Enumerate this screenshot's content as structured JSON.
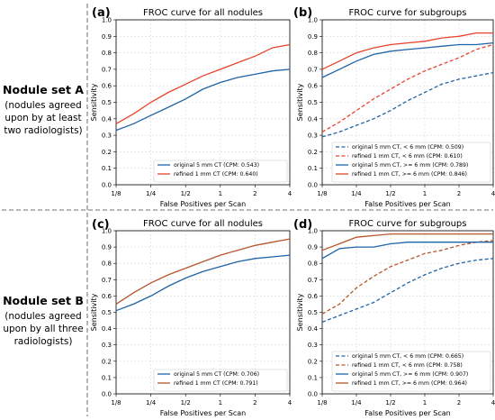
{
  "rows": [
    {
      "title": "Nodule set A",
      "desc": [
        "(nodules agreed",
        "upon by at least",
        "two radiologists)"
      ]
    },
    {
      "title": "Nodule set B",
      "desc": [
        "(nodules agreed",
        "upon by all three",
        "radiologists)"
      ]
    }
  ],
  "colors": {
    "blue": "#1f63a8",
    "red": "#e8432c",
    "brown": "#b5562b"
  },
  "chart_data": [
    {
      "panel_label": "(a)",
      "type": "line",
      "title": "FROC curve for all nodules",
      "xlabel": "False Positives per Scan",
      "ylabel": "Sensitivity",
      "x_scale": "log2",
      "x_ticks": [
        "1/8",
        "1/4",
        "1/2",
        "1",
        "2",
        "4"
      ],
      "x_tick_values": [
        0.125,
        0.25,
        0.5,
        1,
        2,
        4
      ],
      "ylim": [
        0.0,
        1.0
      ],
      "y_ticks": [
        "0.0",
        "0.1",
        "0.2",
        "0.3",
        "0.4",
        "0.5",
        "0.6",
        "0.7",
        "0.8",
        "0.9",
        "1.0"
      ],
      "grid": true,
      "legend_position": "lower-right",
      "series": [
        {
          "name": "original 5 mm CT (CPM: 0.543)",
          "color": "#1f63a8",
          "dash": false,
          "x": [
            0.125,
            0.177,
            0.25,
            0.354,
            0.5,
            0.707,
            1,
            1.41,
            2,
            2.83,
            4
          ],
          "y": [
            0.33,
            0.37,
            0.42,
            0.47,
            0.52,
            0.58,
            0.62,
            0.65,
            0.67,
            0.69,
            0.7
          ]
        },
        {
          "name": "refined 1 mm CT (CPM: 0.640)",
          "color": "#e8432c",
          "dash": false,
          "x": [
            0.125,
            0.177,
            0.25,
            0.354,
            0.5,
            0.707,
            1,
            1.41,
            2,
            2.83,
            4
          ],
          "y": [
            0.37,
            0.43,
            0.5,
            0.56,
            0.61,
            0.66,
            0.7,
            0.74,
            0.78,
            0.83,
            0.85
          ]
        }
      ]
    },
    {
      "panel_label": "(b)",
      "type": "line",
      "title": "FROC curve for subgroups",
      "xlabel": "False Positives per Scan",
      "ylabel": "Sensitivity",
      "x_scale": "log2",
      "x_ticks": [
        "1/8",
        "1/4",
        "1/2",
        "1",
        "2",
        "4"
      ],
      "x_tick_values": [
        0.125,
        0.25,
        0.5,
        1,
        2,
        4
      ],
      "ylim": [
        0.0,
        1.0
      ],
      "y_ticks": [
        "0.0",
        "0.1",
        "0.2",
        "0.3",
        "0.4",
        "0.5",
        "0.6",
        "0.7",
        "0.8",
        "0.9",
        "1.0"
      ],
      "grid": true,
      "legend_position": "lower-right",
      "series": [
        {
          "name": "original 5 mm CT, < 6 mm (CPM: 0.509)",
          "color": "#1f63a8",
          "dash": true,
          "x": [
            0.125,
            0.177,
            0.25,
            0.354,
            0.5,
            0.707,
            1,
            1.41,
            2,
            2.83,
            4
          ],
          "y": [
            0.29,
            0.32,
            0.36,
            0.4,
            0.45,
            0.51,
            0.56,
            0.61,
            0.64,
            0.66,
            0.68
          ]
        },
        {
          "name": "refined 1 mm CT, < 6 mm (CPM: 0.610)",
          "color": "#e8432c",
          "dash": true,
          "x": [
            0.125,
            0.177,
            0.25,
            0.354,
            0.5,
            0.707,
            1,
            1.41,
            2,
            2.83,
            4
          ],
          "y": [
            0.32,
            0.38,
            0.45,
            0.52,
            0.58,
            0.64,
            0.69,
            0.73,
            0.77,
            0.82,
            0.85
          ]
        },
        {
          "name": "original 5 mm CT, >= 6 mm (CPM: 0.789)",
          "color": "#1f63a8",
          "dash": false,
          "x": [
            0.125,
            0.177,
            0.25,
            0.354,
            0.5,
            0.707,
            1,
            1.41,
            2,
            2.83,
            4
          ],
          "y": [
            0.65,
            0.7,
            0.75,
            0.79,
            0.81,
            0.82,
            0.83,
            0.84,
            0.85,
            0.85,
            0.86
          ]
        },
        {
          "name": "refined 1 mm CT, >= 6 mm (CPM: 0.846)",
          "color": "#e8432c",
          "dash": false,
          "x": [
            0.125,
            0.177,
            0.25,
            0.354,
            0.5,
            0.707,
            1,
            1.41,
            2,
            2.83,
            4
          ],
          "y": [
            0.7,
            0.75,
            0.8,
            0.83,
            0.85,
            0.86,
            0.87,
            0.89,
            0.9,
            0.92,
            0.92
          ]
        }
      ]
    },
    {
      "panel_label": "(c)",
      "type": "line",
      "title": "FROC curve for all nodules",
      "xlabel": "False Positives per Scan",
      "ylabel": "Sensitivity",
      "x_scale": "log2",
      "x_ticks": [
        "1/8",
        "1/4",
        "1/2",
        "1",
        "2",
        "4"
      ],
      "x_tick_values": [
        0.125,
        0.25,
        0.5,
        1,
        2,
        4
      ],
      "ylim": [
        0.0,
        1.0
      ],
      "y_ticks": [
        "0.0",
        "0.1",
        "0.2",
        "0.3",
        "0.4",
        "0.5",
        "0.6",
        "0.7",
        "0.8",
        "0.9",
        "1.0"
      ],
      "grid": true,
      "legend_position": "lower-right",
      "series": [
        {
          "name": "original 5 mm CT (CPM: 0.706)",
          "color": "#1f63a8",
          "dash": false,
          "x": [
            0.125,
            0.177,
            0.25,
            0.354,
            0.5,
            0.707,
            1,
            1.41,
            2,
            2.83,
            4
          ],
          "y": [
            0.51,
            0.55,
            0.6,
            0.66,
            0.71,
            0.75,
            0.78,
            0.81,
            0.83,
            0.84,
            0.85
          ]
        },
        {
          "name": "refined 1 mm CT (CPM: 0.791)",
          "color": "#b5562b",
          "dash": false,
          "x": [
            0.125,
            0.177,
            0.25,
            0.354,
            0.5,
            0.707,
            1,
            1.41,
            2,
            2.83,
            4
          ],
          "y": [
            0.55,
            0.62,
            0.68,
            0.73,
            0.77,
            0.81,
            0.85,
            0.88,
            0.91,
            0.93,
            0.95
          ]
        }
      ]
    },
    {
      "panel_label": "(d)",
      "type": "line",
      "title": "FROC curve for subgroups",
      "xlabel": "False Positives per Scan",
      "ylabel": "Sensitivity",
      "x_scale": "log2",
      "x_ticks": [
        "1/8",
        "1/4",
        "1/2",
        "1",
        "2",
        "4"
      ],
      "x_tick_values": [
        0.125,
        0.25,
        0.5,
        1,
        2,
        4
      ],
      "ylim": [
        0.0,
        1.0
      ],
      "y_ticks": [
        "0.0",
        "0.1",
        "0.2",
        "0.3",
        "0.4",
        "0.5",
        "0.6",
        "0.7",
        "0.8",
        "0.9",
        "1.0"
      ],
      "grid": true,
      "legend_position": "lower-right",
      "series": [
        {
          "name": "original 5 mm CT, < 6 mm (CPM: 0.665)",
          "color": "#1f63a8",
          "dash": true,
          "x": [
            0.125,
            0.177,
            0.25,
            0.354,
            0.5,
            0.707,
            1,
            1.41,
            2,
            2.83,
            4
          ],
          "y": [
            0.44,
            0.48,
            0.52,
            0.56,
            0.62,
            0.68,
            0.73,
            0.77,
            0.8,
            0.82,
            0.83
          ]
        },
        {
          "name": "refined 1 mm CT, < 6 mm (CPM: 0.758)",
          "color": "#b5562b",
          "dash": true,
          "x": [
            0.125,
            0.177,
            0.25,
            0.354,
            0.5,
            0.707,
            1,
            1.41,
            2,
            2.83,
            4
          ],
          "y": [
            0.49,
            0.55,
            0.65,
            0.72,
            0.78,
            0.82,
            0.86,
            0.88,
            0.91,
            0.93,
            0.94
          ]
        },
        {
          "name": "original 5 mm CT, >= 6 mm (CPM: 0.907)",
          "color": "#1f63a8",
          "dash": false,
          "x": [
            0.125,
            0.177,
            0.25,
            0.354,
            0.5,
            0.707,
            1,
            1.41,
            2,
            2.83,
            4
          ],
          "y": [
            0.83,
            0.89,
            0.9,
            0.9,
            0.92,
            0.93,
            0.93,
            0.93,
            0.93,
            0.93,
            0.93
          ]
        },
        {
          "name": "refined 1 mm CT, >= 6 mm (CPM: 0.964)",
          "color": "#b5562b",
          "dash": false,
          "x": [
            0.125,
            0.177,
            0.25,
            0.354,
            0.5,
            0.707,
            1,
            1.41,
            2,
            2.83,
            4
          ],
          "y": [
            0.88,
            0.92,
            0.96,
            0.97,
            0.98,
            0.98,
            0.98,
            0.98,
            0.98,
            0.98,
            0.98
          ]
        }
      ]
    }
  ]
}
